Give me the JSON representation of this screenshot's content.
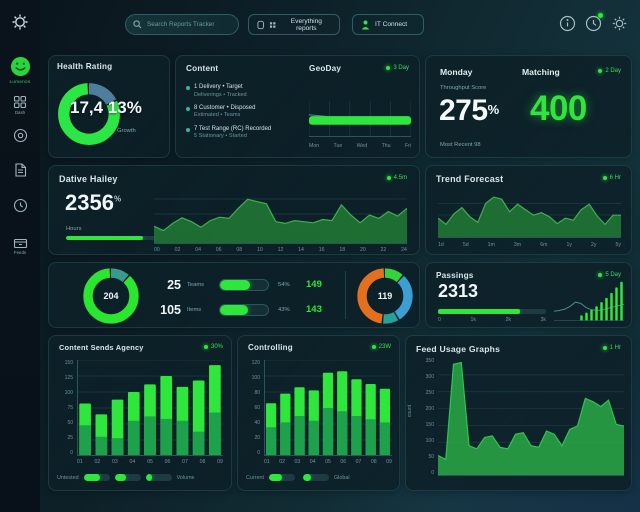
{
  "topbar": {
    "search_placeholder": "Search Reports Tracker",
    "filter_button": "Everything reports",
    "connect_button": "IT Connect"
  },
  "sidebar": {
    "logo_label": "Lumenos",
    "nav_dash_label": "Dash",
    "nav_feeds_label": "Feeds"
  },
  "cards": {
    "health": {
      "title": "Health Rating",
      "value": "17,4",
      "percent": "13%",
      "caption": "Growth"
    },
    "content": {
      "title": "Content",
      "items": [
        {
          "title": "1 Delivery • Target",
          "sub": "Deliverings • Tracked"
        },
        {
          "title": "8 Customer • Disposed",
          "sub": "Estimated • Teams"
        },
        {
          "title": "7 Test Range (RC) Recorded",
          "sub": "5 Stationary • Started"
        }
      ]
    },
    "geoday": {
      "title": "GeoDay",
      "meta": "3 Day"
    },
    "monday": {
      "title_left": "Monday",
      "title_right": "Matching",
      "meta": "2 Day",
      "caption": "Throughput Score",
      "value_pct": "275",
      "pct_sign": "%",
      "value_green": "400",
      "footnote": "Most Recent 98"
    },
    "daily": {
      "title": "Dative Hailey",
      "meta": "4.5m",
      "value": "2356",
      "value_sup": "%",
      "progress_label": "Hours",
      "progress": 84
    },
    "trend": {
      "title": "Trend Forecast",
      "meta": "6 Hr"
    },
    "stats": {
      "left_center": "204",
      "right_center": "119",
      "rows": [
        {
          "value": "25",
          "label": "Teams",
          "pill": 62,
          "mid": "54%",
          "green": "149"
        },
        {
          "value": "105",
          "label": "Items",
          "pill": 58,
          "mid": "43%",
          "green": "143"
        }
      ]
    },
    "passings": {
      "title": "Passings",
      "meta": "5 Day",
      "value": "2313",
      "progress": 76,
      "ticks": [
        "0",
        "1k",
        "2k",
        "3k"
      ]
    },
    "agency": {
      "title": "Content Sends Agency",
      "meta": "30%",
      "legend_left": "Untested",
      "legend_right": "Volume",
      "pills": [
        62,
        45,
        26
      ]
    },
    "controlling": {
      "title": "Controlling",
      "meta": "23W",
      "legend_left": "Current",
      "legend_right": "Global",
      "pills": [
        50,
        30
      ]
    },
    "usage": {
      "title": "Feed Usage Graphs",
      "meta": "1 Hr",
      "ylabel": "count"
    }
  },
  "colors": {
    "accent_green": "#2ee63c",
    "dark_green": "#1da24b",
    "area_fill": "#1f7434",
    "area_stroke": "#3fae53",
    "teal_text": "#7fa6ad",
    "donut_blue": "#4f7e9d",
    "donut_orange": "#e2701f",
    "donut_skyblue": "#3b9fd4",
    "donut_teal": "#2aa198"
  },
  "chart_data": {
    "health_donut": {
      "type": "pie",
      "thickness": 11,
      "segments": [
        {
          "value": 18,
          "color": "#4f7e9d"
        },
        {
          "value": 82,
          "color": "#2be645"
        }
      ]
    },
    "geoday": {
      "type": "bar",
      "x": [
        "Mon",
        "Tue",
        "Wed",
        "Thu",
        "Fri"
      ],
      "bar_value": 100,
      "max": 100,
      "line": [
        62,
        58,
        50,
        44,
        46,
        45,
        46,
        47
      ]
    },
    "daily_area": {
      "type": "area",
      "max": 100,
      "fill": "#1f7434",
      "stroke": "#3fae53",
      "values": [
        30,
        22,
        35,
        45,
        38,
        28,
        40,
        46,
        44,
        62,
        78,
        74,
        70,
        38,
        35,
        40,
        38,
        36,
        42,
        40,
        68,
        50,
        36,
        50,
        44,
        56,
        48,
        62
      ],
      "x": [
        "00",
        "02",
        "04",
        "06",
        "08",
        "10",
        "12",
        "14",
        "16",
        "18",
        "20",
        "22",
        "24"
      ]
    },
    "trend_area": {
      "type": "area",
      "max": 100,
      "fill": "#1f7434",
      "stroke": "#3fae53",
      "values": [
        45,
        30,
        55,
        70,
        48,
        35,
        80,
        95,
        90,
        60,
        78,
        65,
        52,
        58,
        48,
        32,
        45,
        40,
        65,
        78,
        50,
        30,
        52,
        52
      ],
      "x": [
        "1d",
        "5d",
        "1m",
        "3m",
        "6m",
        "1y",
        "2y",
        "5y"
      ]
    },
    "stats_left_donut": {
      "type": "pie",
      "thickness": 10,
      "segments": [
        {
          "value": 12,
          "color": "#3a9a8e"
        },
        {
          "value": 88,
          "color": "#2be62e"
        }
      ]
    },
    "stats_right_donut": {
      "type": "pie",
      "thickness": 10,
      "segments": [
        {
          "value": 12,
          "color": "#35d23c"
        },
        {
          "value": 30,
          "color": "#3b9fd4"
        },
        {
          "value": 10,
          "color": "#2aa198"
        },
        {
          "value": 48,
          "color": "#e2701f"
        }
      ]
    },
    "passings_spark": {
      "type": "spark",
      "max": 60,
      "line": [
        14,
        15,
        17,
        21,
        27,
        25,
        19,
        16,
        15,
        16,
        18,
        20,
        22,
        24
      ],
      "bars": [
        0,
        0,
        0,
        0,
        0,
        8,
        12,
        16,
        21,
        27,
        33,
        40,
        48,
        56
      ]
    },
    "agency_bars": {
      "type": "stacked-bar",
      "max": 150,
      "grid": 6,
      "totals": [
        82,
        65,
        88,
        100,
        112,
        125,
        108,
        118,
        142
      ],
      "bases": [
        48,
        30,
        28,
        55,
        62,
        58,
        55,
        38,
        68
      ],
      "x": [
        "01",
        "02",
        "03",
        "04",
        "05",
        "06",
        "07",
        "08",
        "09"
      ],
      "y": [
        "150",
        "125",
        "100",
        "75",
        "50",
        "25",
        "0"
      ]
    },
    "controlling_bars": {
      "type": "stacked-bar",
      "max": 120,
      "grid": 6,
      "totals": [
        66,
        78,
        86,
        82,
        104,
        106,
        96,
        90,
        84
      ],
      "bases": [
        36,
        42,
        50,
        44,
        60,
        56,
        50,
        46,
        42
      ],
      "x": [
        "01",
        "02",
        "03",
        "04",
        "05",
        "06",
        "07",
        "08",
        "09"
      ],
      "y": [
        "120",
        "100",
        "80",
        "60",
        "40",
        "20",
        "0"
      ]
    },
    "usage_area": {
      "type": "area",
      "max": 350,
      "grid": 7,
      "fill": "#27a043",
      "stroke": "#2fc452",
      "values": [
        60,
        48,
        340,
        345,
        90,
        80,
        115,
        120,
        85,
        80,
        125,
        130,
        90,
        85,
        135,
        125,
        90,
        140,
        150,
        235,
        225,
        210,
        230,
        155,
        150
      ],
      "y": [
        "350",
        "300",
        "250",
        "200",
        "150",
        "100",
        "50",
        "0"
      ]
    }
  }
}
